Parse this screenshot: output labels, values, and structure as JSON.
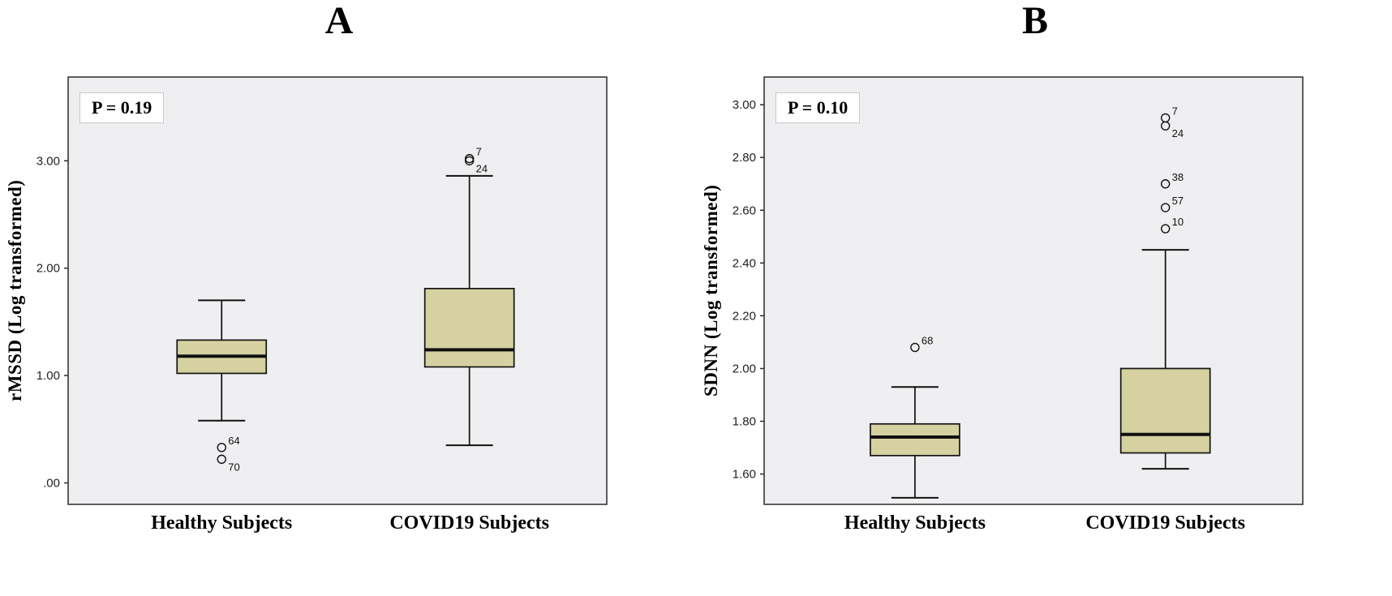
{
  "figure": {
    "background": "#ffffff",
    "plot_bg": "#efeef0",
    "box_fill": "#d5d1a0",
    "box_stroke": "#141414"
  },
  "chart_data": [
    {
      "type": "box",
      "panel": "A",
      "title": "A",
      "p_label": "P = 0.19",
      "ylabel": "rMSSD (Log transformed)",
      "ylim": [
        -0.2,
        3.78
      ],
      "grid": false,
      "legend": "none",
      "yticks": [
        {
          "value": 0.0,
          "label": ".00"
        },
        {
          "value": 1.0,
          "label": "1.00"
        },
        {
          "value": 2.0,
          "label": "2.00"
        },
        {
          "value": 3.0,
          "label": "3.00"
        }
      ],
      "categories": [
        "Healthy Subjects",
        "COVID19 Subjects"
      ],
      "boxes": [
        {
          "category": "Healthy Subjects",
          "x_frac": 0.285,
          "whisker_low": 0.58,
          "q1": 1.02,
          "median": 1.18,
          "q3": 1.33,
          "whisker_high": 1.7,
          "outliers": [
            {
              "value": 0.33,
              "label": "64",
              "label_side": "above"
            },
            {
              "value": 0.22,
              "label": "70",
              "label_side": "below"
            }
          ]
        },
        {
          "category": "COVID19 Subjects",
          "x_frac": 0.745,
          "whisker_low": 0.35,
          "q1": 1.08,
          "median": 1.24,
          "q3": 1.81,
          "whisker_high": 2.86,
          "outliers": [
            {
              "value": 3.02,
              "label": "7",
              "label_side": "above"
            },
            {
              "value": 3.0,
              "label": "24",
              "label_side": "below"
            }
          ]
        }
      ]
    },
    {
      "type": "box",
      "panel": "B",
      "title": "B",
      "p_label": "P = 0.10",
      "ylabel": "SDNN (Log transformed)",
      "ylim": [
        1.485,
        3.105
      ],
      "grid": false,
      "legend": "none",
      "yticks": [
        {
          "value": 1.6,
          "label": "1.60"
        },
        {
          "value": 1.8,
          "label": "1.80"
        },
        {
          "value": 2.0,
          "label": "2.00"
        },
        {
          "value": 2.2,
          "label": "2.20"
        },
        {
          "value": 2.4,
          "label": "2.40"
        },
        {
          "value": 2.6,
          "label": "2.60"
        },
        {
          "value": 2.8,
          "label": "2.80"
        },
        {
          "value": 3.0,
          "label": "3.00"
        }
      ],
      "categories": [
        "Healthy Subjects",
        "COVID19 Subjects"
      ],
      "boxes": [
        {
          "category": "Healthy Subjects",
          "x_frac": 0.28,
          "whisker_low": 1.51,
          "q1": 1.67,
          "median": 1.74,
          "q3": 1.79,
          "whisker_high": 1.93,
          "outliers": [
            {
              "value": 2.08,
              "label": "68",
              "label_side": "above"
            }
          ]
        },
        {
          "category": "COVID19 Subjects",
          "x_frac": 0.745,
          "whisker_low": 1.62,
          "q1": 1.68,
          "median": 1.75,
          "q3": 2.0,
          "whisker_high": 2.45,
          "outliers": [
            {
              "value": 2.95,
              "label": "7",
              "label_side": "above"
            },
            {
              "value": 2.92,
              "label": "24",
              "label_side": "below"
            },
            {
              "value": 2.7,
              "label": "38",
              "label_side": "above"
            },
            {
              "value": 2.61,
              "label": "57",
              "label_side": "above"
            },
            {
              "value": 2.53,
              "label": "10",
              "label_side": "above"
            }
          ]
        }
      ]
    }
  ]
}
